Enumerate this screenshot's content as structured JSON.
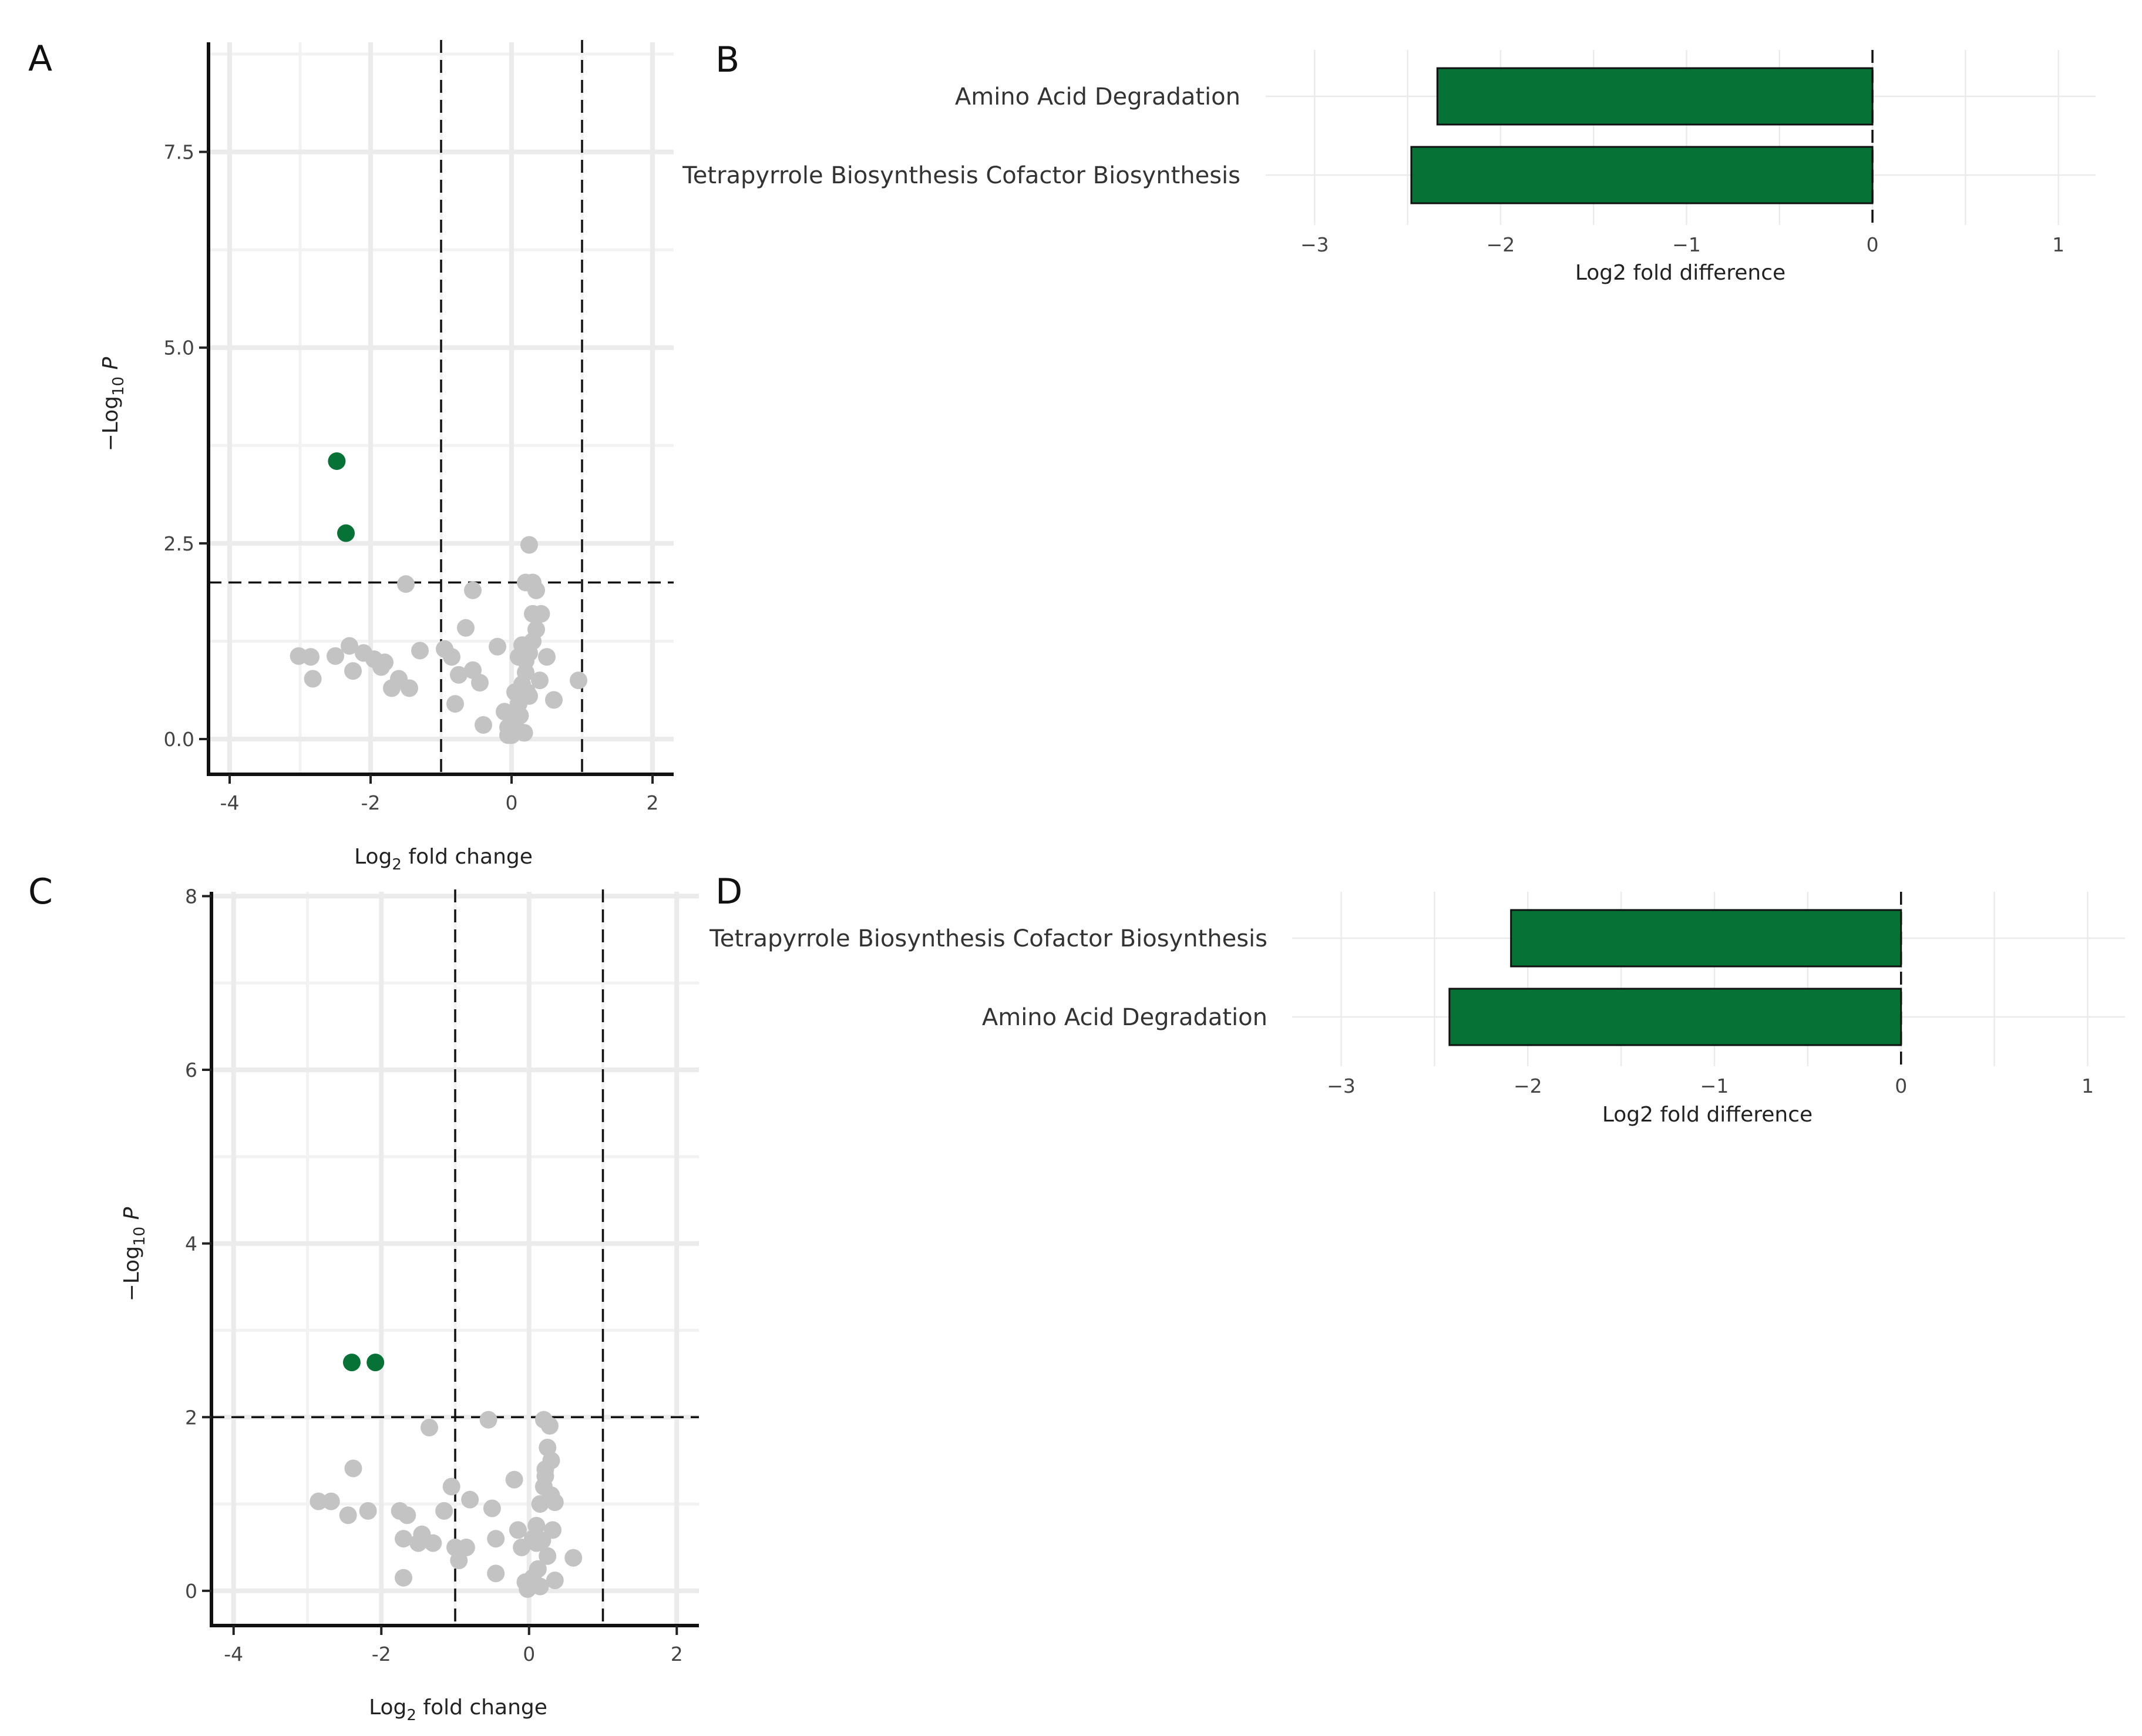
{
  "colors": {
    "significant": "#077236",
    "nonsignificant": "#c3c3c3",
    "bar": "#077236"
  },
  "chart_data": [
    {
      "panel": "A",
      "type": "scatter",
      "title": "",
      "xlabel": "Log2 fold change",
      "ylabel": "-Log10 P",
      "xlim": [
        -4.3,
        2.3
      ],
      "ylim": [
        -0.45,
        8.9
      ],
      "xticks": [
        -4,
        -2,
        0,
        2
      ],
      "xtick_labels": [
        "-4",
        "-2",
        "0",
        "2"
      ],
      "yticks": [
        0.0,
        2.5,
        5.0,
        7.5
      ],
      "ytick_labels": [
        "0.0",
        "2.5",
        "5.0",
        "7.5"
      ],
      "fc_cutoffs": [
        -1,
        1
      ],
      "p_cutoff": 2.0,
      "grid": true,
      "series": [
        {
          "name": "significant",
          "points": [
            [
              -2.48,
              3.55
            ],
            [
              -2.35,
              2.63
            ]
          ]
        },
        {
          "name": "not significant",
          "points": [
            [
              -3.02,
              1.06
            ],
            [
              -2.85,
              1.05
            ],
            [
              -2.82,
              0.77
            ],
            [
              -2.5,
              1.06
            ],
            [
              -2.3,
              1.19
            ],
            [
              -2.25,
              0.87
            ],
            [
              -2.1,
              1.1
            ],
            [
              -1.95,
              1.02
            ],
            [
              -1.85,
              0.92
            ],
            [
              -1.8,
              0.98
            ],
            [
              -1.7,
              0.65
            ],
            [
              -1.6,
              0.77
            ],
            [
              -1.45,
              0.65
            ],
            [
              -1.3,
              1.13
            ],
            [
              -1.5,
              1.98
            ],
            [
              -0.95,
              1.15
            ],
            [
              -0.85,
              1.05
            ],
            [
              -0.75,
              0.82
            ],
            [
              -0.65,
              1.42
            ],
            [
              -0.55,
              0.88
            ],
            [
              -0.45,
              0.72
            ],
            [
              -0.8,
              0.45
            ],
            [
              -0.4,
              0.18
            ],
            [
              -0.55,
              1.9
            ],
            [
              -0.2,
              1.18
            ],
            [
              -0.1,
              0.35
            ],
            [
              -0.05,
              0.15
            ],
            [
              0.0,
              0.05
            ],
            [
              0.05,
              0.25
            ],
            [
              0.1,
              0.45
            ],
            [
              0.05,
              0.6
            ],
            [
              0.15,
              0.7
            ],
            [
              0.2,
              0.85
            ],
            [
              0.2,
              1.0
            ],
            [
              0.25,
              1.1
            ],
            [
              0.3,
              1.25
            ],
            [
              0.35,
              1.4
            ],
            [
              0.3,
              1.6
            ],
            [
              0.35,
              1.9
            ],
            [
              0.3,
              2.0
            ],
            [
              0.25,
              2.48
            ],
            [
              0.2,
              2.0
            ],
            [
              0.1,
              1.05
            ],
            [
              0.15,
              1.2
            ],
            [
              0.4,
              0.75
            ],
            [
              0.5,
              1.05
            ],
            [
              0.6,
              0.5
            ],
            [
              0.95,
              0.75
            ],
            [
              0.25,
              0.55
            ],
            [
              0.18,
              0.08
            ],
            [
              0.08,
              0.12
            ],
            [
              -0.05,
              0.05
            ],
            [
              0.12,
              0.3
            ],
            [
              0.22,
              0.6
            ],
            [
              0.42,
              1.6
            ]
          ]
        }
      ]
    },
    {
      "panel": "B",
      "type": "bar",
      "orientation": "horizontal",
      "categories": [
        "Amino Acid Degradation",
        "Tetrapyrrole Biosynthesis Cofactor Biosynthesis"
      ],
      "values": [
        -2.34,
        -2.48
      ],
      "xlabel": "Log2 fold difference",
      "xlim": [
        -3.2,
        1.2
      ],
      "xticks": [
        -3,
        -2,
        -1,
        0,
        1
      ],
      "xtick_labels": [
        "−3",
        "−2",
        "−1",
        "0",
        "1"
      ],
      "reference_line": 0,
      "grid": true
    },
    {
      "panel": "C",
      "type": "scatter",
      "title": "",
      "xlabel": "Log2 fold change",
      "ylabel": "-Log10 P",
      "xlim": [
        -4.3,
        2.3
      ],
      "ylim": [
        -0.4,
        8.05
      ],
      "xticks": [
        -4,
        -2,
        0,
        2
      ],
      "xtick_labels": [
        "-4",
        "-2",
        "0",
        "2"
      ],
      "yticks": [
        0,
        2,
        4,
        6,
        8
      ],
      "ytick_labels": [
        "0",
        "2",
        "4",
        "6",
        "8"
      ],
      "fc_cutoffs": [
        -1,
        1
      ],
      "p_cutoff": 2.0,
      "grid": true,
      "series": [
        {
          "name": "significant",
          "points": [
            [
              -2.4,
              2.63
            ],
            [
              -2.08,
              2.63
            ]
          ]
        },
        {
          "name": "not significant",
          "points": [
            [
              -2.85,
              1.03
            ],
            [
              -2.68,
              1.03
            ],
            [
              -2.45,
              0.87
            ],
            [
              -2.38,
              1.41
            ],
            [
              -2.18,
              0.92
            ],
            [
              -1.75,
              0.92
            ],
            [
              -1.65,
              0.87
            ],
            [
              -1.7,
              0.6
            ],
            [
              -1.5,
              0.55
            ],
            [
              -1.45,
              0.65
            ],
            [
              -1.3,
              0.55
            ],
            [
              -1.7,
              0.15
            ],
            [
              -1.35,
              1.88
            ],
            [
              -1.15,
              0.92
            ],
            [
              -1.05,
              1.2
            ],
            [
              -1.0,
              0.5
            ],
            [
              -0.95,
              0.35
            ],
            [
              -0.85,
              0.5
            ],
            [
              -0.8,
              1.05
            ],
            [
              -0.55,
              1.97
            ],
            [
              -0.5,
              0.95
            ],
            [
              -0.45,
              0.6
            ],
            [
              -0.45,
              0.2
            ],
            [
              -0.2,
              1.28
            ],
            [
              -0.15,
              0.7
            ],
            [
              -0.1,
              0.5
            ],
            [
              -0.05,
              0.1
            ],
            [
              0.0,
              0.05
            ],
            [
              0.05,
              0.15
            ],
            [
              0.1,
              0.55
            ],
            [
              0.1,
              0.75
            ],
            [
              0.15,
              1.0
            ],
            [
              0.2,
              1.2
            ],
            [
              0.22,
              1.4
            ],
            [
              0.25,
              1.65
            ],
            [
              0.28,
              1.9
            ],
            [
              0.2,
              1.97
            ],
            [
              0.3,
              1.1
            ],
            [
              0.32,
              0.7
            ],
            [
              0.25,
              0.4
            ],
            [
              0.35,
              0.12
            ],
            [
              0.6,
              0.38
            ],
            [
              0.15,
              0.05
            ],
            [
              0.05,
              0.6
            ],
            [
              0.18,
              0.58
            ],
            [
              0.3,
              1.5
            ],
            [
              0.22,
              1.32
            ],
            [
              0.12,
              0.25
            ],
            [
              -0.02,
              0.02
            ],
            [
              0.35,
              1.02
            ]
          ]
        }
      ]
    },
    {
      "panel": "D",
      "type": "bar",
      "orientation": "horizontal",
      "categories": [
        "Tetrapyrrole Biosynthesis Cofactor Biosynthesis",
        "Amino Acid Degradation"
      ],
      "values": [
        -2.09,
        -2.42
      ],
      "xlabel": "Log2 fold difference",
      "xlim": [
        -3.2,
        1.2
      ],
      "xticks": [
        -3,
        -2,
        -1,
        0,
        1
      ],
      "xtick_labels": [
        "−3",
        "−2",
        "−1",
        "0",
        "1"
      ],
      "reference_line": 0,
      "grid": true
    }
  ]
}
